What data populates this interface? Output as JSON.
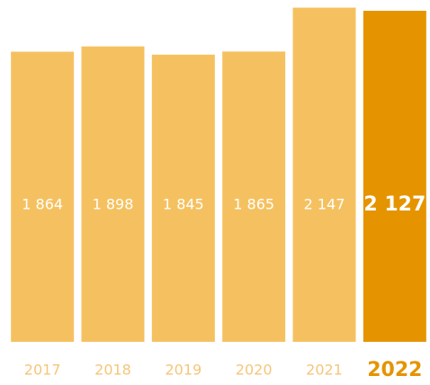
{
  "chart_data": {
    "type": "bar",
    "categories": [
      "2017",
      "2018",
      "2019",
      "2020",
      "2021",
      "2022"
    ],
    "values": [
      1864,
      1898,
      1845,
      1865,
      2147,
      2127
    ],
    "value_labels": [
      "1 864",
      "1 898",
      "1 845",
      "1 865",
      "2 147",
      "2 127"
    ],
    "colors": [
      "#f5c160",
      "#f5c160",
      "#f5c160",
      "#f5c160",
      "#f5c160",
      "#e59400"
    ],
    "ylim": [
      0,
      2150
    ]
  }
}
